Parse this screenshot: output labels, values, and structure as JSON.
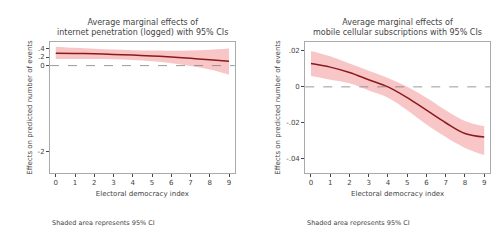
{
  "chart_data": [
    {
      "type": "line",
      "title": "Average marginal effects of\ninternet penetration (logged) with 95% CIs",
      "x_label": "Electoral democracy index",
      "y_label": "Effects on predicted number of events",
      "x": [
        0,
        1,
        2,
        3,
        4,
        5,
        6,
        7,
        8,
        9
      ],
      "series": [
        {
          "values": [
            0.29,
            0.285,
            0.275,
            0.26,
            0.245,
            0.225,
            0.2,
            0.17,
            0.135,
            0.1
          ],
          "ci_upper": [
            0.44,
            0.415,
            0.395,
            0.375,
            0.36,
            0.35,
            0.348,
            0.355,
            0.37,
            0.4
          ],
          "ci_lower": [
            0.155,
            0.155,
            0.152,
            0.148,
            0.13,
            0.1,
            0.055,
            -0.01,
            -0.09,
            -0.21
          ],
          "color": "#8B1A1A",
          "ci_color": "#F08080"
        }
      ],
      "reference_y": 0,
      "xlim": [
        -0.3,
        9.3
      ],
      "ylim": [
        -2.5,
        0.55
      ],
      "xticks": [
        0,
        1,
        2,
        3,
        4,
        5,
        6,
        7,
        8,
        9
      ],
      "yticks": [
        -2,
        0,
        {
          "value": 0.2,
          "label": ".2"
        },
        {
          "value": 0.4,
          "label": ".4"
        }
      ],
      "annotations": [
        "Shaded area represents 95% CI"
      ],
      "grid": false
    },
    {
      "type": "line",
      "title": "Average marginal effects of\nmobile cellular subscriptions with 95% CIs",
      "x_label": "Electoral democracy index",
      "y_label": "Effects on predicted number of events",
      "x": [
        0,
        1,
        2,
        3,
        4,
        5,
        6,
        7,
        8,
        9
      ],
      "series": [
        {
          "values": [
            0.013,
            0.011,
            0.008,
            0.004,
            0.0,
            -0.006,
            -0.013,
            -0.02,
            -0.026,
            -0.028
          ],
          "ci_upper": [
            0.02,
            0.017,
            0.013,
            0.009,
            0.005,
            0.0,
            -0.006,
            -0.013,
            -0.019,
            -0.022
          ],
          "ci_lower": [
            0.006,
            0.004,
            0.002,
            -0.002,
            -0.006,
            -0.013,
            -0.021,
            -0.028,
            -0.034,
            -0.038
          ],
          "color": "#8B1A1A",
          "ci_color": "#F08080"
        }
      ],
      "reference_y": 0,
      "xlim": [
        -0.3,
        9.3
      ],
      "ylim": [
        -0.048,
        0.025
      ],
      "xticks": [
        0,
        1,
        2,
        3,
        4,
        5,
        6,
        7,
        8,
        9
      ],
      "yticks": [
        {
          "value": -0.04,
          "label": "-.04"
        },
        {
          "value": -0.02,
          "label": "-.02"
        },
        0,
        {
          "value": 0.02,
          "label": ".02"
        }
      ],
      "annotations": [
        "Shaded area represents 95% CI"
      ],
      "grid": false
    }
  ]
}
